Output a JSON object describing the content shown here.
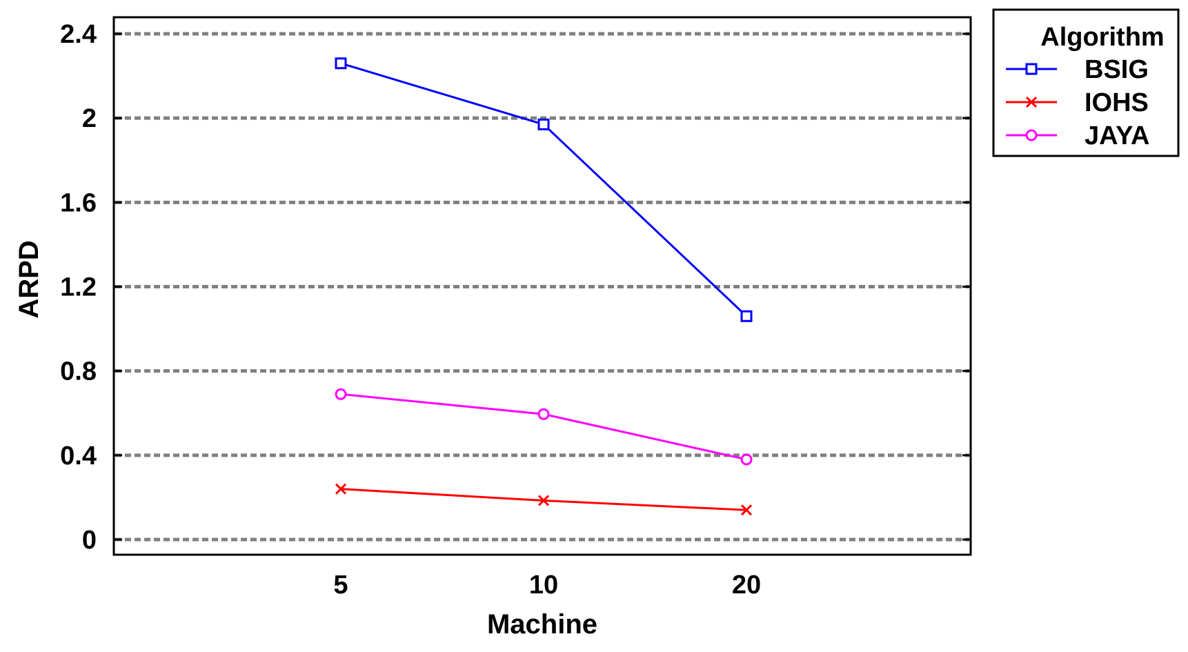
{
  "chart_data": {
    "type": "line",
    "categories": [
      "5",
      "10",
      "20"
    ],
    "xlabel": "Machine",
    "ylabel": "ARPD",
    "ylim": [
      0,
      2.4
    ],
    "yticks": [
      "0",
      "0.4",
      "0.8",
      "1.2",
      "1.6",
      "2",
      "2.4"
    ],
    "grid": "horizontal dashed",
    "legend": {
      "title": "Algorithm",
      "placement": "top-right, outside plot"
    },
    "series": [
      {
        "name": "BSIG",
        "values": [
          2.26,
          1.97,
          1.06
        ],
        "color": "#0000ff",
        "marker": "square"
      },
      {
        "name": "IOHS",
        "values": [
          0.24,
          0.185,
          0.14
        ],
        "color": "#ff0000",
        "marker": "x"
      },
      {
        "name": "JAYA",
        "values": [
          0.69,
          0.595,
          0.38
        ],
        "color": "#ff00ff",
        "marker": "circle"
      }
    ]
  }
}
